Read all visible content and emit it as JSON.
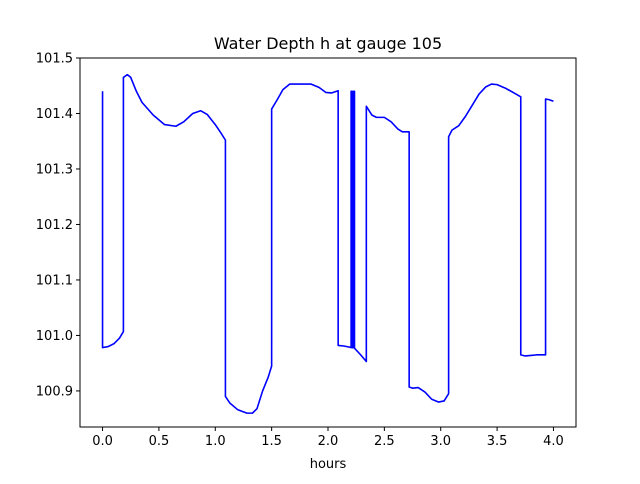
{
  "chart_data": {
    "type": "line",
    "title": "Water Depth h at gauge 105",
    "xlabel": "hours",
    "ylabel": "",
    "xlim": [
      -0.2,
      4.2
    ],
    "ylim": [
      100.835,
      101.5
    ],
    "grid": false,
    "x_ticks": [
      0.0,
      0.5,
      1.0,
      1.5,
      2.0,
      2.5,
      3.0,
      3.5,
      4.0
    ],
    "x_tick_labels": [
      "0.0",
      "0.5",
      "1.0",
      "1.5",
      "2.0",
      "2.5",
      "3.0",
      "3.5",
      "4.0"
    ],
    "y_ticks": [
      100.9,
      101.0,
      101.1,
      101.2,
      101.3,
      101.4,
      101.5
    ],
    "y_tick_labels": [
      "100.9",
      "101.0",
      "101.1",
      "101.2",
      "101.3",
      "101.4",
      "101.5"
    ],
    "series": [
      {
        "color": "#0000ff",
        "points": [
          [
            0.0,
            101.44
          ],
          [
            0.0,
            100.978
          ],
          [
            0.05,
            100.98
          ],
          [
            0.1,
            100.985
          ],
          [
            0.15,
            100.995
          ],
          [
            0.185,
            101.007
          ],
          [
            0.185,
            101.465
          ],
          [
            0.22,
            101.47
          ],
          [
            0.25,
            101.465
          ],
          [
            0.3,
            101.44
          ],
          [
            0.35,
            101.42
          ],
          [
            0.45,
            101.397
          ],
          [
            0.55,
            101.38
          ],
          [
            0.65,
            101.377
          ],
          [
            0.72,
            101.385
          ],
          [
            0.8,
            101.4
          ],
          [
            0.87,
            101.405
          ],
          [
            0.93,
            101.398
          ],
          [
            1.0,
            101.38
          ],
          [
            1.05,
            101.365
          ],
          [
            1.09,
            101.352
          ],
          [
            1.09,
            100.89
          ],
          [
            1.13,
            100.878
          ],
          [
            1.2,
            100.866
          ],
          [
            1.28,
            100.86
          ],
          [
            1.33,
            100.86
          ],
          [
            1.37,
            100.868
          ],
          [
            1.42,
            100.9
          ],
          [
            1.47,
            100.925
          ],
          [
            1.5,
            100.945
          ],
          [
            1.5,
            101.408
          ],
          [
            1.55,
            101.425
          ],
          [
            1.6,
            101.443
          ],
          [
            1.66,
            101.453
          ],
          [
            1.75,
            101.453
          ],
          [
            1.85,
            101.453
          ],
          [
            1.92,
            101.447
          ],
          [
            1.98,
            101.438
          ],
          [
            2.03,
            101.437
          ],
          [
            2.09,
            101.441
          ],
          [
            2.09,
            100.982
          ],
          [
            2.14,
            100.981
          ],
          [
            2.19,
            100.979
          ],
          [
            2.205,
            100.978
          ],
          [
            2.205,
            101.44
          ],
          [
            2.215,
            101.44
          ],
          [
            2.215,
            100.978
          ],
          [
            2.225,
            100.978
          ],
          [
            2.225,
            101.44
          ],
          [
            2.235,
            101.44
          ],
          [
            2.235,
            100.977
          ],
          [
            2.29,
            100.965
          ],
          [
            2.34,
            100.953
          ],
          [
            2.34,
            101.413
          ],
          [
            2.39,
            101.397
          ],
          [
            2.43,
            101.393
          ],
          [
            2.5,
            101.393
          ],
          [
            2.56,
            101.385
          ],
          [
            2.62,
            101.372
          ],
          [
            2.66,
            101.367
          ],
          [
            2.72,
            101.367
          ],
          [
            2.72,
            100.907
          ],
          [
            2.75,
            100.905
          ],
          [
            2.8,
            100.906
          ],
          [
            2.86,
            100.898
          ],
          [
            2.92,
            100.885
          ],
          [
            2.98,
            100.88
          ],
          [
            3.03,
            100.882
          ],
          [
            3.07,
            100.895
          ],
          [
            3.07,
            101.358
          ],
          [
            3.1,
            101.37
          ],
          [
            3.16,
            101.378
          ],
          [
            3.22,
            101.395
          ],
          [
            3.28,
            101.415
          ],
          [
            3.34,
            101.435
          ],
          [
            3.4,
            101.448
          ],
          [
            3.45,
            101.453
          ],
          [
            3.5,
            101.452
          ],
          [
            3.58,
            101.445
          ],
          [
            3.65,
            101.437
          ],
          [
            3.71,
            101.43
          ],
          [
            3.71,
            100.965
          ],
          [
            3.75,
            100.963
          ],
          [
            3.8,
            100.964
          ],
          [
            3.85,
            100.965
          ],
          [
            3.93,
            100.965
          ],
          [
            3.93,
            101.426
          ],
          [
            3.96,
            101.425
          ],
          [
            4.0,
            101.422
          ]
        ]
      }
    ]
  }
}
